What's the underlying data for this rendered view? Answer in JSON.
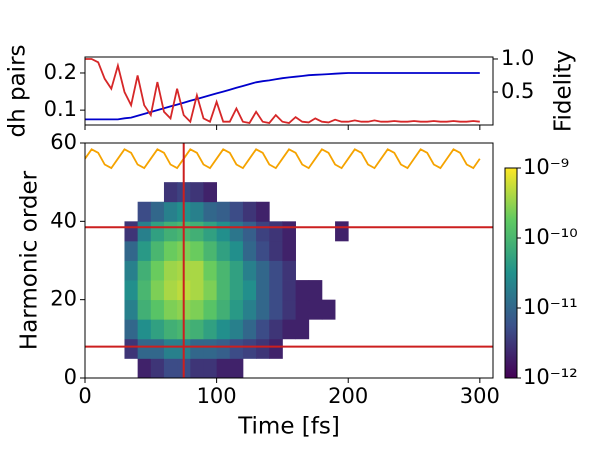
{
  "charts": [
    {
      "type": "line",
      "xlim": [
        0,
        310
      ],
      "xticks": [
        0,
        100,
        200,
        300
      ],
      "show_xtick_labels": false,
      "ylim": [
        0.06,
        0.243
      ],
      "yticks": [
        0.1,
        0.2
      ],
      "ylabel": "dh pairs",
      "ylabel_color": "#0000cc",
      "y2lim": [
        0,
        1.03
      ],
      "y2ticks": [
        0.5,
        {
          "value": 1,
          "label": "1.0"
        }
      ],
      "y2label": "Fidelity",
      "y2label_color": "#d62728",
      "x": [
        0,
        5,
        10,
        15,
        20,
        25,
        30,
        35,
        40,
        45,
        50,
        55,
        60,
        65,
        70,
        75,
        80,
        85,
        90,
        95,
        100,
        105,
        110,
        115,
        120,
        125,
        130,
        135,
        140,
        145,
        150,
        155,
        160,
        165,
        170,
        175,
        180,
        185,
        190,
        195,
        200,
        205,
        210,
        215,
        220,
        225,
        230,
        235,
        240,
        245,
        250,
        255,
        260,
        265,
        270,
        275,
        280,
        285,
        290,
        295,
        300
      ],
      "series": [
        {
          "color": "#0000cc",
          "values": [
            0.075,
            0.075,
            0.075,
            0.075,
            0.075,
            0.075,
            0.078,
            0.08,
            0.085,
            0.09,
            0.095,
            0.1,
            0.105,
            0.11,
            0.115,
            0.12,
            0.125,
            0.13,
            0.135,
            0.14,
            0.145,
            0.15,
            0.155,
            0.16,
            0.165,
            0.17,
            0.175,
            0.178,
            0.18,
            0.183,
            0.186,
            0.188,
            0.19,
            0.192,
            0.194,
            0.195,
            0.196,
            0.197,
            0.198,
            0.199,
            0.2,
            0.2,
            0.2,
            0.2,
            0.2,
            0.2,
            0.2,
            0.2,
            0.2,
            0.2,
            0.2,
            0.2,
            0.2,
            0.2,
            0.2,
            0.2,
            0.2,
            0.2,
            0.2,
            0.2,
            0.2
          ]
        },
        {
          "color": "#d62728",
          "axis": "y2",
          "values": [
            1.0,
            1.0,
            0.95,
            0.7,
            0.55,
            0.9,
            0.5,
            0.3,
            0.75,
            0.3,
            0.15,
            0.65,
            0.2,
            0.1,
            0.55,
            0.15,
            0.05,
            0.45,
            0.1,
            0.05,
            0.35,
            0.05,
            0.05,
            0.25,
            0.05,
            0.03,
            0.2,
            0.05,
            0.03,
            0.15,
            0.05,
            0.03,
            0.12,
            0.05,
            0.04,
            0.1,
            0.05,
            0.04,
            0.08,
            0.05,
            0.05,
            0.07,
            0.05,
            0.05,
            0.07,
            0.05,
            0.05,
            0.06,
            0.05,
            0.05,
            0.06,
            0.05,
            0.05,
            0.06,
            0.05,
            0.05,
            0.06,
            0.05,
            0.05,
            0.06,
            0.05
          ]
        }
      ]
    },
    {
      "type": "heatmap",
      "xlim": [
        0,
        310
      ],
      "xticks": [
        0,
        100,
        200,
        300
      ],
      "xlabel": "Time [fs]",
      "ylim": [
        0,
        60
      ],
      "yticks": [
        0,
        20,
        40,
        60
      ],
      "ylabel": "Harmonic order",
      "x_edges": [
        20,
        30,
        40,
        50,
        60,
        70,
        80,
        90,
        100,
        110,
        120,
        130,
        140,
        150,
        160,
        170,
        180,
        190,
        200
      ],
      "y_edges": [
        0,
        5,
        10,
        15,
        20,
        25,
        30,
        35,
        40,
        45,
        50
      ],
      "z": [
        [
          null,
          null,
          2e-12,
          3e-12,
          5e-12,
          5e-12,
          3e-12,
          3e-12,
          2e-12,
          2e-12,
          null,
          null,
          null,
          null,
          null,
          null,
          null,
          null
        ],
        [
          null,
          3e-12,
          1e-11,
          1e-11,
          2e-11,
          2e-11,
          1e-11,
          1e-11,
          8e-12,
          5e-12,
          4e-12,
          3e-12,
          2e-12,
          null,
          null,
          null,
          null,
          null
        ],
        [
          null,
          1e-11,
          3e-11,
          5e-11,
          8e-11,
          1e-10,
          8e-11,
          5e-11,
          3e-11,
          2e-11,
          1e-11,
          5e-12,
          3e-12,
          2e-12,
          2e-12,
          null,
          null,
          null
        ],
        [
          null,
          2e-11,
          8e-11,
          1.5e-10,
          2.5e-10,
          3e-10,
          2.5e-10,
          1.5e-10,
          8e-11,
          4e-11,
          2e-11,
          1e-11,
          5e-12,
          3e-12,
          2e-12,
          2e-12,
          2e-12,
          null
        ],
        [
          null,
          3e-11,
          1e-10,
          2.5e-10,
          4e-10,
          5e-10,
          4e-10,
          2.5e-10,
          1e-10,
          5e-11,
          3e-11,
          1e-11,
          5e-12,
          3e-12,
          2e-12,
          2e-12,
          null,
          null
        ],
        [
          null,
          2e-11,
          8e-11,
          2e-10,
          3.5e-10,
          4e-10,
          4e-10,
          2e-10,
          1e-10,
          5e-11,
          2e-11,
          1e-11,
          5e-12,
          3e-12,
          null,
          null,
          null,
          null
        ],
        [
          null,
          1e-11,
          4e-11,
          1e-10,
          2e-10,
          2.5e-10,
          2e-10,
          1e-10,
          5e-11,
          3e-11,
          1e-11,
          5e-12,
          3e-12,
          2e-12,
          null,
          null,
          null,
          null
        ],
        [
          null,
          3e-12,
          2e-11,
          5e-11,
          8e-11,
          1e-10,
          8e-11,
          5e-11,
          3e-11,
          1.5e-11,
          8e-12,
          4e-12,
          3e-12,
          2e-12,
          null,
          null,
          null,
          2e-12
        ],
        [
          null,
          null,
          5e-12,
          1e-11,
          2e-11,
          3e-11,
          2e-11,
          1e-11,
          8e-12,
          5e-12,
          3e-12,
          2e-12,
          null,
          null,
          null,
          null,
          null,
          null
        ],
        [
          null,
          null,
          null,
          null,
          3e-12,
          4e-12,
          3e-12,
          2e-12,
          null,
          null,
          null,
          null,
          null,
          null,
          null,
          null,
          null,
          null
        ]
      ],
      "colormap": "viridis",
      "clog": true,
      "clim": [
        1e-12,
        1e-09
      ],
      "cticks": [
        {
          "value": 1e-12,
          "label": "10⁻¹²"
        },
        {
          "value": 1e-11,
          "label": "10⁻¹¹"
        },
        {
          "value": 1e-10,
          "label": "10⁻¹⁰"
        },
        {
          "value": 1e-09,
          "label": "10⁻⁹"
        }
      ],
      "field": {
        "color": "#f5a300",
        "x": [
          0,
          5,
          10,
          15,
          20,
          25,
          30,
          35,
          40,
          45,
          50,
          55,
          60,
          65,
          70,
          75,
          80,
          85,
          90,
          95,
          100,
          105,
          110,
          115,
          120,
          125,
          130,
          135,
          140,
          145,
          150,
          155,
          160,
          165,
          170,
          175,
          180,
          185,
          190,
          195,
          200,
          205,
          210,
          215,
          220,
          225,
          230,
          235,
          240,
          245,
          250,
          255,
          260,
          265,
          270,
          275,
          280,
          285,
          290,
          295,
          300
        ],
        "values": [
          56,
          58.4,
          57.5,
          54.5,
          53.6,
          56,
          58.4,
          57.5,
          54.5,
          53.6,
          56,
          58.4,
          57.5,
          54.5,
          53.6,
          56,
          58.4,
          57.5,
          54.5,
          53.6,
          56,
          58.4,
          57.5,
          54.5,
          53.6,
          56,
          58.4,
          57.5,
          54.5,
          53.6,
          56,
          58.4,
          57.5,
          54.5,
          53.6,
          56,
          58.4,
          57.5,
          54.5,
          53.6,
          56,
          58.4,
          57.5,
          54.5,
          53.6,
          56,
          58.4,
          57.5,
          54.5,
          53.6,
          56,
          58.4,
          57.5,
          54.5,
          53.6,
          56,
          58.4,
          57.5,
          54.5,
          53.6,
          56
        ]
      },
      "line_color": "#cc1f1f",
      "hlines": [
        38.5,
        8
      ],
      "vlines": [
        75
      ]
    }
  ]
}
